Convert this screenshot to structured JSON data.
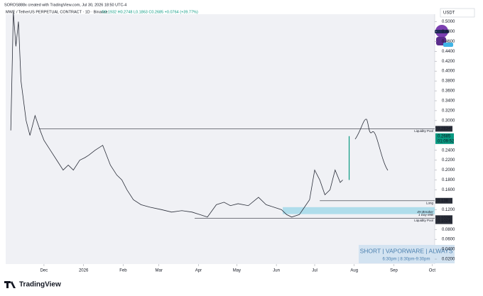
{
  "header": {
    "credit": "SOROS888x created with TradingView.com, Jul 30, 2026 18:50 UTC-4",
    "symbol": "MWE / TetherUS PERPETUAL CONTRACT · 1D · Binance",
    "ohlc": "O0.1932 H0.2748 L0.1863 C0.2685 +0.0764 (+39.77%)"
  },
  "chart_data": {
    "type": "line",
    "currency": "USDT",
    "color": "#2a2e39",
    "x": [
      -26,
      -24,
      -22,
      -20,
      -18,
      -16,
      -14,
      -11,
      -7,
      -3,
      0,
      5,
      10,
      15,
      19,
      23,
      28,
      32,
      35,
      40,
      46,
      52,
      57,
      61,
      65,
      70,
      76,
      83,
      92,
      100,
      108,
      116,
      122,
      128,
      135,
      141,
      146,
      152,
      160,
      168,
      174,
      180,
      186,
      190,
      194,
      200,
      204,
      208,
      212,
      216,
      220,
      224,
      228,
      232,
      234
    ],
    "values": [
      0.28,
      0.52,
      0.45,
      0.5,
      0.38,
      0.34,
      0.3,
      0.27,
      0.31,
      0.28,
      0.26,
      0.24,
      0.22,
      0.2,
      0.21,
      0.2,
      0.22,
      0.225,
      0.23,
      0.24,
      0.25,
      0.21,
      0.19,
      0.18,
      0.16,
      0.14,
      0.13,
      0.125,
      0.12,
      0.115,
      0.118,
      0.115,
      0.11,
      0.105,
      0.13,
      0.135,
      0.128,
      0.132,
      0.128,
      0.145,
      0.13,
      0.125,
      0.12,
      0.11,
      0.105,
      0.11,
      0.125,
      0.14,
      0.2,
      0.18,
      0.15,
      0.16,
      0.2,
      0.175,
      0.18
    ],
    "last": {
      "value": 0.2685,
      "x": 239,
      "countdown": "01:09:52"
    },
    "xlim": [
      -30,
      306
    ],
    "ylim": [
      0.01,
      0.515
    ],
    "xticks": [
      {
        "value": 0,
        "label": "Dec"
      },
      {
        "value": 31,
        "label": "2026"
      },
      {
        "value": 62,
        "label": "Feb"
      },
      {
        "value": 90,
        "label": "Mar"
      },
      {
        "value": 121,
        "label": "Apr"
      },
      {
        "value": 151,
        "label": "May"
      },
      {
        "value": 182,
        "label": "Jun"
      },
      {
        "value": 212,
        "label": "Jul"
      },
      {
        "value": 243,
        "label": "Aug"
      },
      {
        "value": 274,
        "label": "Sep"
      },
      {
        "value": 304,
        "label": "Oct"
      }
    ],
    "yticks": [
      {
        "value": 0.5,
        "label": "0.5000"
      },
      {
        "value": 0.48,
        "label": "0.4800"
      },
      {
        "value": 0.46,
        "label": "0.4600"
      },
      {
        "value": 0.44,
        "label": "0.4400"
      },
      {
        "value": 0.42,
        "label": "0.4200"
      },
      {
        "value": 0.4,
        "label": "0.4000"
      },
      {
        "value": 0.38,
        "label": "0.3800"
      },
      {
        "value": 0.36,
        "label": "0.3600"
      },
      {
        "value": 0.34,
        "label": "0.3400"
      },
      {
        "value": 0.32,
        "label": "0.3200"
      },
      {
        "value": 0.3,
        "label": "0.3000"
      },
      {
        "value": 0.24,
        "label": "0.2400"
      },
      {
        "value": 0.22,
        "label": "0.2200"
      },
      {
        "value": 0.2,
        "label": "0.2000"
      },
      {
        "value": 0.18,
        "label": "0.1800"
      },
      {
        "value": 0.16,
        "label": "0.1600"
      },
      {
        "value": 0.12,
        "label": "0.1200"
      },
      {
        "value": 0.08,
        "label": "0.0800"
      },
      {
        "value": 0.06,
        "label": "0.0600"
      },
      {
        "value": 0.04,
        "label": "0.0400"
      },
      {
        "value": 0.02,
        "label": "0.0200"
      }
    ],
    "levels": [
      {
        "label": "Liquidity Pool",
        "value": 0.2834,
        "from": -4
      },
      {
        "label": "Long",
        "value": 0.138,
        "from": 216
      },
      {
        "label": "Liquidity Pool",
        "value": 0.1028,
        "from": 118
      }
    ],
    "zone": {
      "labels": [
        "4H Breaker",
        "1 Day IMB"
      ],
      "range": [
        0.111,
        0.125
      ],
      "from": 187
    },
    "extra_tags": [
      0.1024
    ],
    "note": {
      "title": "SHORT | VAPORWARE | ALWAYS",
      "times": "6:30pm | 8:30pm-9:30pm"
    }
  },
  "footer": {
    "brand": "TradingView"
  }
}
